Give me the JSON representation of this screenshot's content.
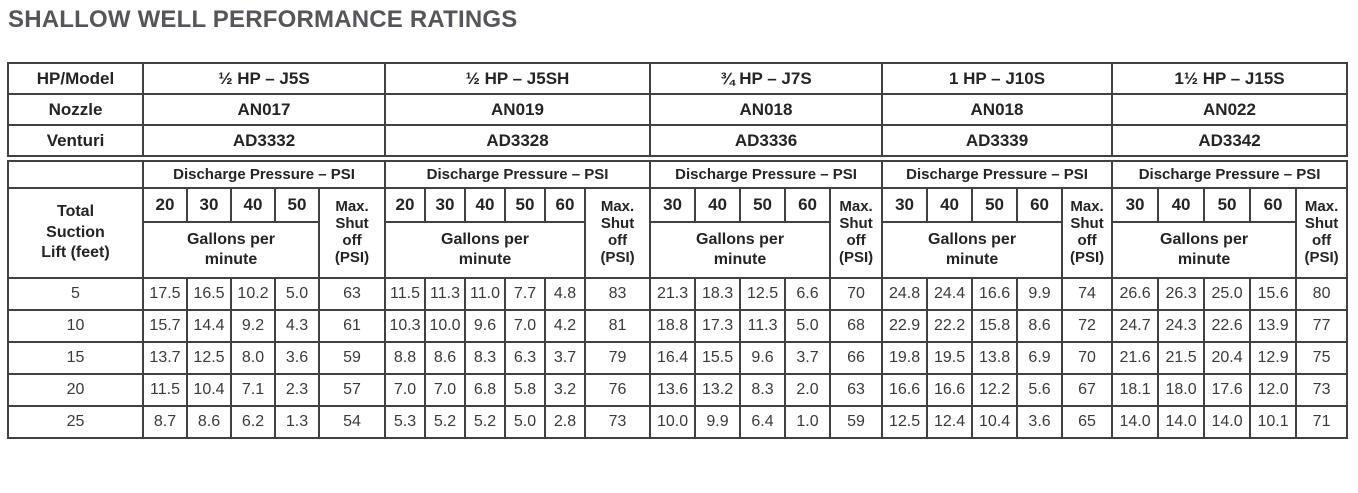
{
  "title": "SHALLOW WELL PERFORMANCE RATINGS",
  "table": {
    "corner_label": "HP/Model",
    "nozzle_label": "Nozzle",
    "venturi_label": "Venturi",
    "suction_lift_label": "Total\nSuction\nLift (feet)",
    "discharge_header": "Discharge Pressure – PSI",
    "gpm_label": "Gallons per\nminute",
    "max_shutoff_label": "Max.\nShut\noff\n(PSI)",
    "groups": [
      {
        "model": "½ HP – J5S",
        "nozzle": "AN017",
        "venturi": "AD3332",
        "pressures": [
          "20",
          "30",
          "40",
          "50"
        ]
      },
      {
        "model": "½ HP – J5SH",
        "nozzle": "AN019",
        "venturi": "AD3328",
        "pressures": [
          "20",
          "30",
          "40",
          "50",
          "60"
        ]
      },
      {
        "model": "¾ HP – J7S",
        "nozzle": "AN018",
        "venturi": "AD3336",
        "pressures": [
          "30",
          "40",
          "50",
          "60"
        ]
      },
      {
        "model": "1 HP – J10S",
        "nozzle": "AN018",
        "venturi": "AD3339",
        "pressures": [
          "30",
          "40",
          "50",
          "60"
        ]
      },
      {
        "model": "1½ HP – J15S",
        "nozzle": "AN022",
        "venturi": "AD3342",
        "pressures": [
          "30",
          "40",
          "50",
          "60"
        ]
      }
    ],
    "rows": [
      {
        "lift": "5",
        "groups": [
          [
            "17.5",
            "16.5",
            "10.2",
            "5.0",
            "63"
          ],
          [
            "11.5",
            "11.3",
            "11.0",
            "7.7",
            "4.8",
            "83"
          ],
          [
            "21.3",
            "18.3",
            "12.5",
            "6.6",
            "70"
          ],
          [
            "24.8",
            "24.4",
            "16.6",
            "9.9",
            "74"
          ],
          [
            "26.6",
            "26.3",
            "25.0",
            "15.6",
            "80"
          ]
        ]
      },
      {
        "lift": "10",
        "groups": [
          [
            "15.7",
            "14.4",
            "9.2",
            "4.3",
            "61"
          ],
          [
            "10.3",
            "10.0",
            "9.6",
            "7.0",
            "4.2",
            "81"
          ],
          [
            "18.8",
            "17.3",
            "11.3",
            "5.0",
            "68"
          ],
          [
            "22.9",
            "22.2",
            "15.8",
            "8.6",
            "72"
          ],
          [
            "24.7",
            "24.3",
            "22.6",
            "13.9",
            "77"
          ]
        ]
      },
      {
        "lift": "15",
        "groups": [
          [
            "13.7",
            "12.5",
            "8.0",
            "3.6",
            "59"
          ],
          [
            "8.8",
            "8.6",
            "8.3",
            "6.3",
            "3.7",
            "79"
          ],
          [
            "16.4",
            "15.5",
            "9.6",
            "3.7",
            "66"
          ],
          [
            "19.8",
            "19.5",
            "13.8",
            "6.9",
            "70"
          ],
          [
            "21.6",
            "21.5",
            "20.4",
            "12.9",
            "75"
          ]
        ]
      },
      {
        "lift": "20",
        "groups": [
          [
            "11.5",
            "10.4",
            "7.1",
            "2.3",
            "57"
          ],
          [
            "7.0",
            "7.0",
            "6.8",
            "5.8",
            "3.2",
            "76"
          ],
          [
            "13.6",
            "13.2",
            "8.3",
            "2.0",
            "63"
          ],
          [
            "16.6",
            "16.6",
            "12.2",
            "5.6",
            "67"
          ],
          [
            "18.1",
            "18.0",
            "17.6",
            "12.0",
            "73"
          ]
        ]
      },
      {
        "lift": "25",
        "groups": [
          [
            "8.7",
            "8.6",
            "6.2",
            "1.3",
            "54"
          ],
          [
            "5.3",
            "5.2",
            "5.2",
            "5.0",
            "2.8",
            "73"
          ],
          [
            "10.0",
            "9.9",
            "6.4",
            "1.0",
            "59"
          ],
          [
            "12.5",
            "12.4",
            "10.4",
            "3.6",
            "65"
          ],
          [
            "14.0",
            "14.0",
            "14.0",
            "10.1",
            "71"
          ]
        ]
      }
    ]
  }
}
